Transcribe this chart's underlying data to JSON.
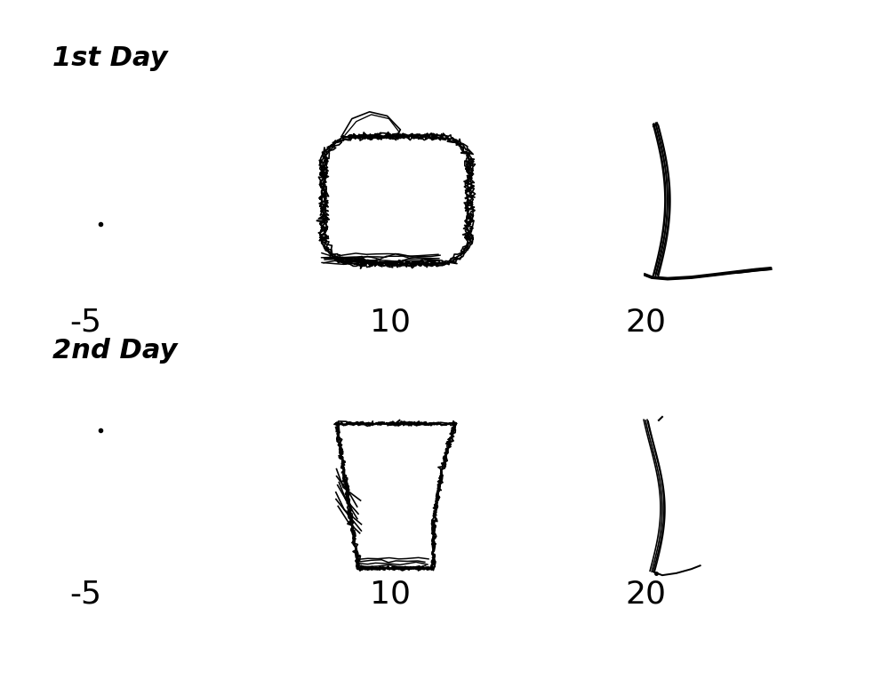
{
  "background_color": "#ffffff",
  "title_fontsize": 22,
  "label_fontsize": 26,
  "day1_label": "1st Day",
  "day2_label": "2nd Day",
  "label_minus5": "-5",
  "label_10": "10",
  "label_20": "20",
  "fig_width": 10.0,
  "fig_height": 7.83
}
